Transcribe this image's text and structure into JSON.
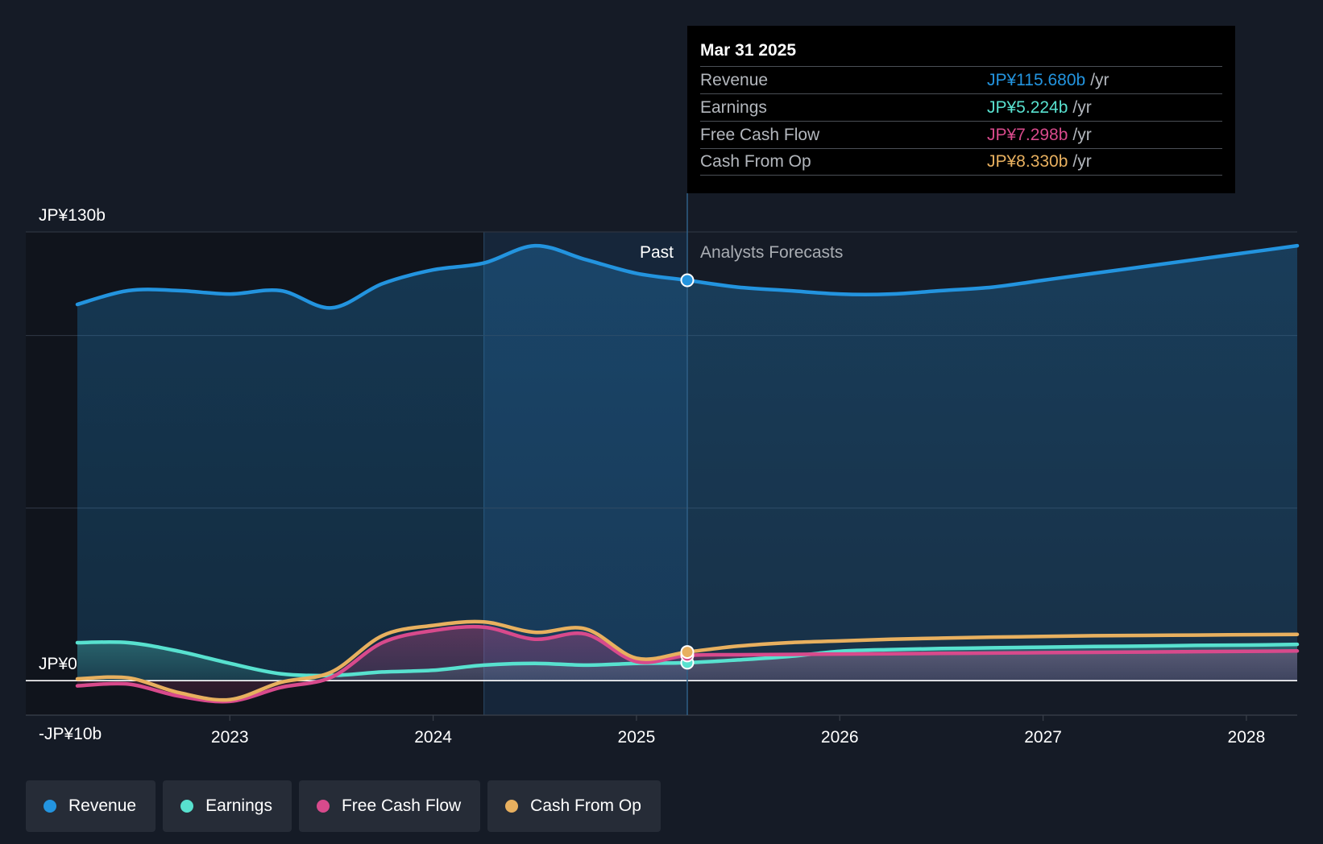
{
  "chart_data": {
    "type": "area",
    "y_tick_labels": [
      "JP¥130b",
      "JP¥0",
      "-JP¥10b"
    ],
    "ylim": [
      -10,
      130
    ],
    "x_tick_labels": [
      "2023",
      "2024",
      "2025",
      "2026",
      "2027",
      "2028"
    ],
    "xlim": [
      2022.25,
      2028.25
    ],
    "divider_x": 2025.25,
    "forecast_start_shade_x": 2024.25,
    "past_label": "Past",
    "forecast_label": "Analysts Forecasts",
    "grid": true,
    "legend_position": "bottom-left",
    "series": [
      {
        "name": "Revenue",
        "color": "#2394df",
        "points": [
          [
            2022.25,
            109
          ],
          [
            2022.5,
            113
          ],
          [
            2022.75,
            113
          ],
          [
            2023.0,
            112
          ],
          [
            2023.25,
            113
          ],
          [
            2023.5,
            108
          ],
          [
            2023.75,
            115
          ],
          [
            2024.0,
            119
          ],
          [
            2024.25,
            121
          ],
          [
            2024.5,
            126
          ],
          [
            2024.75,
            122
          ],
          [
            2025.0,
            118
          ],
          [
            2025.25,
            116
          ],
          [
            2025.5,
            114
          ],
          [
            2025.75,
            113
          ],
          [
            2026.0,
            112
          ],
          [
            2026.25,
            112
          ],
          [
            2026.5,
            113
          ],
          [
            2026.75,
            114
          ],
          [
            2027.0,
            116
          ],
          [
            2027.25,
            118
          ],
          [
            2027.5,
            120
          ],
          [
            2027.75,
            122
          ],
          [
            2028.0,
            124
          ],
          [
            2028.25,
            126
          ]
        ]
      },
      {
        "name": "Earnings",
        "color": "#58e1cf",
        "points": [
          [
            2022.25,
            11
          ],
          [
            2022.5,
            11
          ],
          [
            2022.75,
            8.5
          ],
          [
            2023.0,
            5
          ],
          [
            2023.25,
            2
          ],
          [
            2023.5,
            1.5
          ],
          [
            2023.75,
            2.5
          ],
          [
            2024.0,
            3
          ],
          [
            2024.25,
            4.5
          ],
          [
            2024.5,
            5
          ],
          [
            2024.75,
            4.5
          ],
          [
            2025.0,
            5
          ],
          [
            2025.25,
            5.2
          ],
          [
            2025.5,
            6
          ],
          [
            2025.75,
            7
          ],
          [
            2026.0,
            8.5
          ],
          [
            2026.25,
            9
          ],
          [
            2026.5,
            9.3
          ],
          [
            2026.75,
            9.5
          ],
          [
            2027.0,
            9.7
          ],
          [
            2027.25,
            9.9
          ],
          [
            2027.5,
            10
          ],
          [
            2027.75,
            10.2
          ],
          [
            2028.0,
            10.3
          ],
          [
            2028.25,
            10.5
          ]
        ]
      },
      {
        "name": "Free Cash Flow",
        "color": "#d84a8c",
        "points": [
          [
            2022.25,
            -1.5
          ],
          [
            2022.5,
            -1
          ],
          [
            2022.75,
            -4.5
          ],
          [
            2023.0,
            -6
          ],
          [
            2023.25,
            -2
          ],
          [
            2023.5,
            1
          ],
          [
            2023.75,
            11
          ],
          [
            2024.0,
            14.5
          ],
          [
            2024.25,
            15.5
          ],
          [
            2024.5,
            12
          ],
          [
            2024.75,
            13.5
          ],
          [
            2025.0,
            5.5
          ],
          [
            2025.25,
            7.3
          ],
          [
            2025.5,
            7.5
          ],
          [
            2025.75,
            7.6
          ],
          [
            2026.0,
            7.7
          ],
          [
            2026.25,
            7.8
          ],
          [
            2026.5,
            7.9
          ],
          [
            2026.75,
            8
          ],
          [
            2027.0,
            8.1
          ],
          [
            2027.25,
            8.2
          ],
          [
            2027.5,
            8.3
          ],
          [
            2027.75,
            8.4
          ],
          [
            2028.0,
            8.5
          ],
          [
            2028.25,
            8.6
          ]
        ]
      },
      {
        "name": "Cash From Op",
        "color": "#e8b05f",
        "points": [
          [
            2022.25,
            0.5
          ],
          [
            2022.5,
            0.8
          ],
          [
            2022.75,
            -3.5
          ],
          [
            2023.0,
            -5.5
          ],
          [
            2023.25,
            -0.5
          ],
          [
            2023.5,
            2.5
          ],
          [
            2023.75,
            13
          ],
          [
            2024.0,
            16
          ],
          [
            2024.25,
            17
          ],
          [
            2024.5,
            14
          ],
          [
            2024.75,
            15
          ],
          [
            2025.0,
            6.5
          ],
          [
            2025.25,
            8.3
          ],
          [
            2025.5,
            10
          ],
          [
            2025.75,
            11
          ],
          [
            2026.0,
            11.5
          ],
          [
            2026.25,
            12
          ],
          [
            2026.5,
            12.3
          ],
          [
            2026.75,
            12.6
          ],
          [
            2027.0,
            12.8
          ],
          [
            2027.25,
            13
          ],
          [
            2027.5,
            13.1
          ],
          [
            2027.75,
            13.2
          ],
          [
            2028.0,
            13.3
          ],
          [
            2028.25,
            13.4
          ]
        ]
      }
    ]
  },
  "tooltip": {
    "date": "Mar 31 2025",
    "rows": [
      {
        "label": "Revenue",
        "value": "JP¥115.680b",
        "unit": "/yr",
        "color": "#2394df"
      },
      {
        "label": "Earnings",
        "value": "JP¥5.224b",
        "unit": "/yr",
        "color": "#58e1cf"
      },
      {
        "label": "Free Cash Flow",
        "value": "JP¥7.298b",
        "unit": "/yr",
        "color": "#d84a8c"
      },
      {
        "label": "Cash From Op",
        "value": "JP¥8.330b",
        "unit": "/yr",
        "color": "#e8b05f"
      }
    ]
  },
  "legend": [
    {
      "label": "Revenue",
      "color": "#2394df"
    },
    {
      "label": "Earnings",
      "color": "#58e1cf"
    },
    {
      "label": "Free Cash Flow",
      "color": "#d84a8c"
    },
    {
      "label": "Cash From Op",
      "color": "#e8b05f"
    }
  ]
}
